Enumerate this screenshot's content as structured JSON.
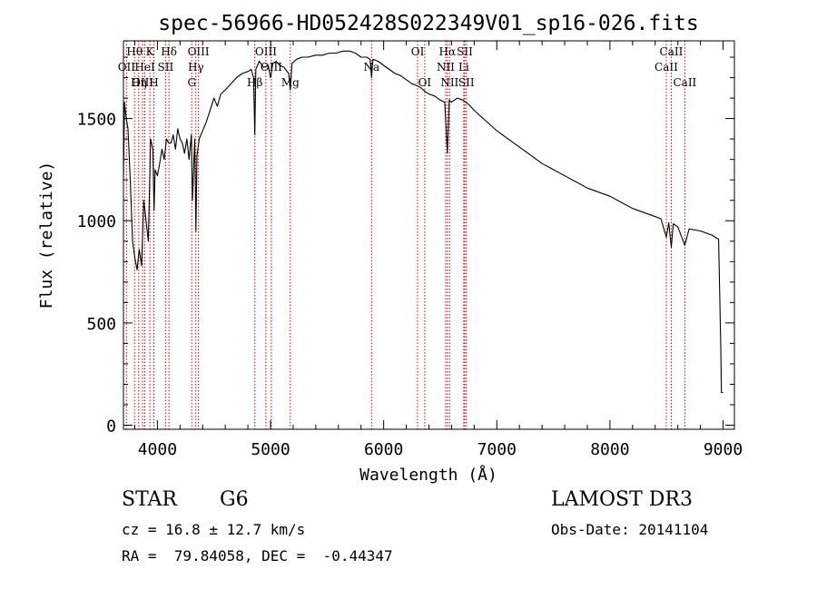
{
  "chart_data": {
    "type": "line",
    "title": "spec-56966-HD052428S022349V01_sp16-026.fits",
    "xlabel": "Wavelength (Å)",
    "ylabel": "Flux (relative)",
    "xlim": [
      3700,
      9100
    ],
    "ylim": [
      -20,
      1880
    ],
    "x_ticks": [
      4000,
      5000,
      6000,
      7000,
      8000,
      9000
    ],
    "y_ticks": [
      0,
      500,
      1000,
      1500
    ],
    "grid": false,
    "line_color": "#000000",
    "marker_color": "#cc0000",
    "series": [
      {
        "name": "flux",
        "x": [
          3700,
          3710,
          3725,
          3740,
          3760,
          3780,
          3800,
          3820,
          3840,
          3860,
          3880,
          3900,
          3920,
          3940,
          3960,
          3970,
          3980,
          4000,
          4020,
          4040,
          4060,
          4080,
          4100,
          4120,
          4140,
          4160,
          4180,
          4200,
          4220,
          4240,
          4260,
          4280,
          4300,
          4310,
          4330,
          4340,
          4350,
          4370,
          4400,
          4430,
          4460,
          4500,
          4530,
          4560,
          4600,
          4650,
          4700,
          4750,
          4800,
          4830,
          4850,
          4861,
          4870,
          4900,
          4940,
          4980,
          5000,
          5020,
          5050,
          5080,
          5120,
          5160,
          5175,
          5190,
          5230,
          5280,
          5330,
          5400,
          5460,
          5520,
          5580,
          5640,
          5700,
          5750,
          5800,
          5850,
          5880,
          5893,
          5905,
          5950,
          6000,
          6050,
          6100,
          6150,
          6200,
          6250,
          6300,
          6330,
          6370,
          6400,
          6450,
          6500,
          6540,
          6563,
          6580,
          6600,
          6650,
          6700,
          6750,
          6800,
          6900,
          7000,
          7100,
          7200,
          7300,
          7400,
          7500,
          7600,
          7700,
          7800,
          7900,
          8000,
          8100,
          8200,
          8300,
          8400,
          8450,
          8498,
          8520,
          8542,
          8560,
          8600,
          8662,
          8700,
          8800,
          8900,
          8960,
          8980,
          8985,
          9000
        ],
        "y": [
          1200,
          1580,
          1500,
          1450,
          1200,
          900,
          820,
          760,
          860,
          780,
          1100,
          1000,
          900,
          1400,
          1350,
          1050,
          1250,
          1220,
          1280,
          1350,
          1300,
          1400,
          1380,
          1380,
          1420,
          1350,
          1450,
          1400,
          1380,
          1330,
          1400,
          1300,
          1420,
          1100,
          1400,
          950,
          1320,
          1400,
          1440,
          1480,
          1530,
          1600,
          1560,
          1620,
          1640,
          1670,
          1700,
          1720,
          1730,
          1740,
          1700,
          1420,
          1740,
          1780,
          1750,
          1760,
          1700,
          1770,
          1780,
          1760,
          1750,
          1720,
          1640,
          1770,
          1790,
          1800,
          1800,
          1810,
          1810,
          1820,
          1820,
          1830,
          1830,
          1820,
          1800,
          1800,
          1790,
          1700,
          1790,
          1780,
          1760,
          1740,
          1720,
          1710,
          1690,
          1670,
          1660,
          1650,
          1630,
          1620,
          1610,
          1590,
          1580,
          1330,
          1590,
          1580,
          1600,
          1590,
          1570,
          1540,
          1490,
          1440,
          1400,
          1360,
          1320,
          1280,
          1250,
          1220,
          1190,
          1160,
          1140,
          1120,
          1090,
          1060,
          1040,
          1020,
          1010,
          920,
          990,
          870,
          985,
          970,
          880,
          960,
          950,
          930,
          910,
          380,
          160,
          160
        ]
      }
    ],
    "line_markers": [
      {
        "label": "Hθ",
        "wavelength": 3798,
        "row": 0
      },
      {
        "label": "OII",
        "wavelength": 3727,
        "row": 1
      },
      {
        "label": "OIII",
        "wavelength": 3869,
        "row": 2
      },
      {
        "label": "HeI",
        "wavelength": 3889,
        "row": 1
      },
      {
        "label": "K",
        "wavelength": 3934,
        "row": 0
      },
      {
        "label": "Hη",
        "wavelength": 3835,
        "row": 2
      },
      {
        "label": "SII",
        "wavelength": 4072,
        "row": 1
      },
      {
        "label": "H",
        "wavelength": 3969,
        "row": 2
      },
      {
        "label": "Hδ",
        "wavelength": 4102,
        "row": 0
      },
      {
        "label": "OIII",
        "wavelength": 4363,
        "row": 0
      },
      {
        "label": "Hγ",
        "wavelength": 4340,
        "row": 1
      },
      {
        "label": "G",
        "wavelength": 4304,
        "row": 2
      },
      {
        "label": "Hβ",
        "wavelength": 4861,
        "row": 2
      },
      {
        "label": "OIII",
        "wavelength": 4959,
        "row": 0
      },
      {
        "label": "OIII",
        "wavelength": 5007,
        "row": 1
      },
      {
        "label": "Mg",
        "wavelength": 5175,
        "row": 2
      },
      {
        "label": "Na",
        "wavelength": 5893,
        "row": 1
      },
      {
        "label": "OI",
        "wavelength": 6300,
        "row": 0
      },
      {
        "label": "OI",
        "wavelength": 6363,
        "row": 2
      },
      {
        "label": "Hα",
        "wavelength": 6563,
        "row": 0
      },
      {
        "label": "NII",
        "wavelength": 6548,
        "row": 1
      },
      {
        "label": "NII",
        "wavelength": 6583,
        "row": 2
      },
      {
        "label": "SII",
        "wavelength": 6717,
        "row": 0
      },
      {
        "label": "Li",
        "wavelength": 6708,
        "row": 1
      },
      {
        "label": "SII",
        "wavelength": 6731,
        "row": 2
      },
      {
        "label": "CaII",
        "wavelength": 8542,
        "row": 0
      },
      {
        "label": "CaII",
        "wavelength": 8498,
        "row": 1
      },
      {
        "label": "CaII",
        "wavelength": 8662,
        "row": 2
      }
    ]
  },
  "info": {
    "object_class": "STAR",
    "subclass": "G6",
    "redshift": "cz = 16.8 ± 12.7 km/s",
    "coords": "RA =  79.84058, DEC =  -0.44347",
    "survey": "LAMOST DR3",
    "obs_date": "Obs-Date: 20141104"
  }
}
